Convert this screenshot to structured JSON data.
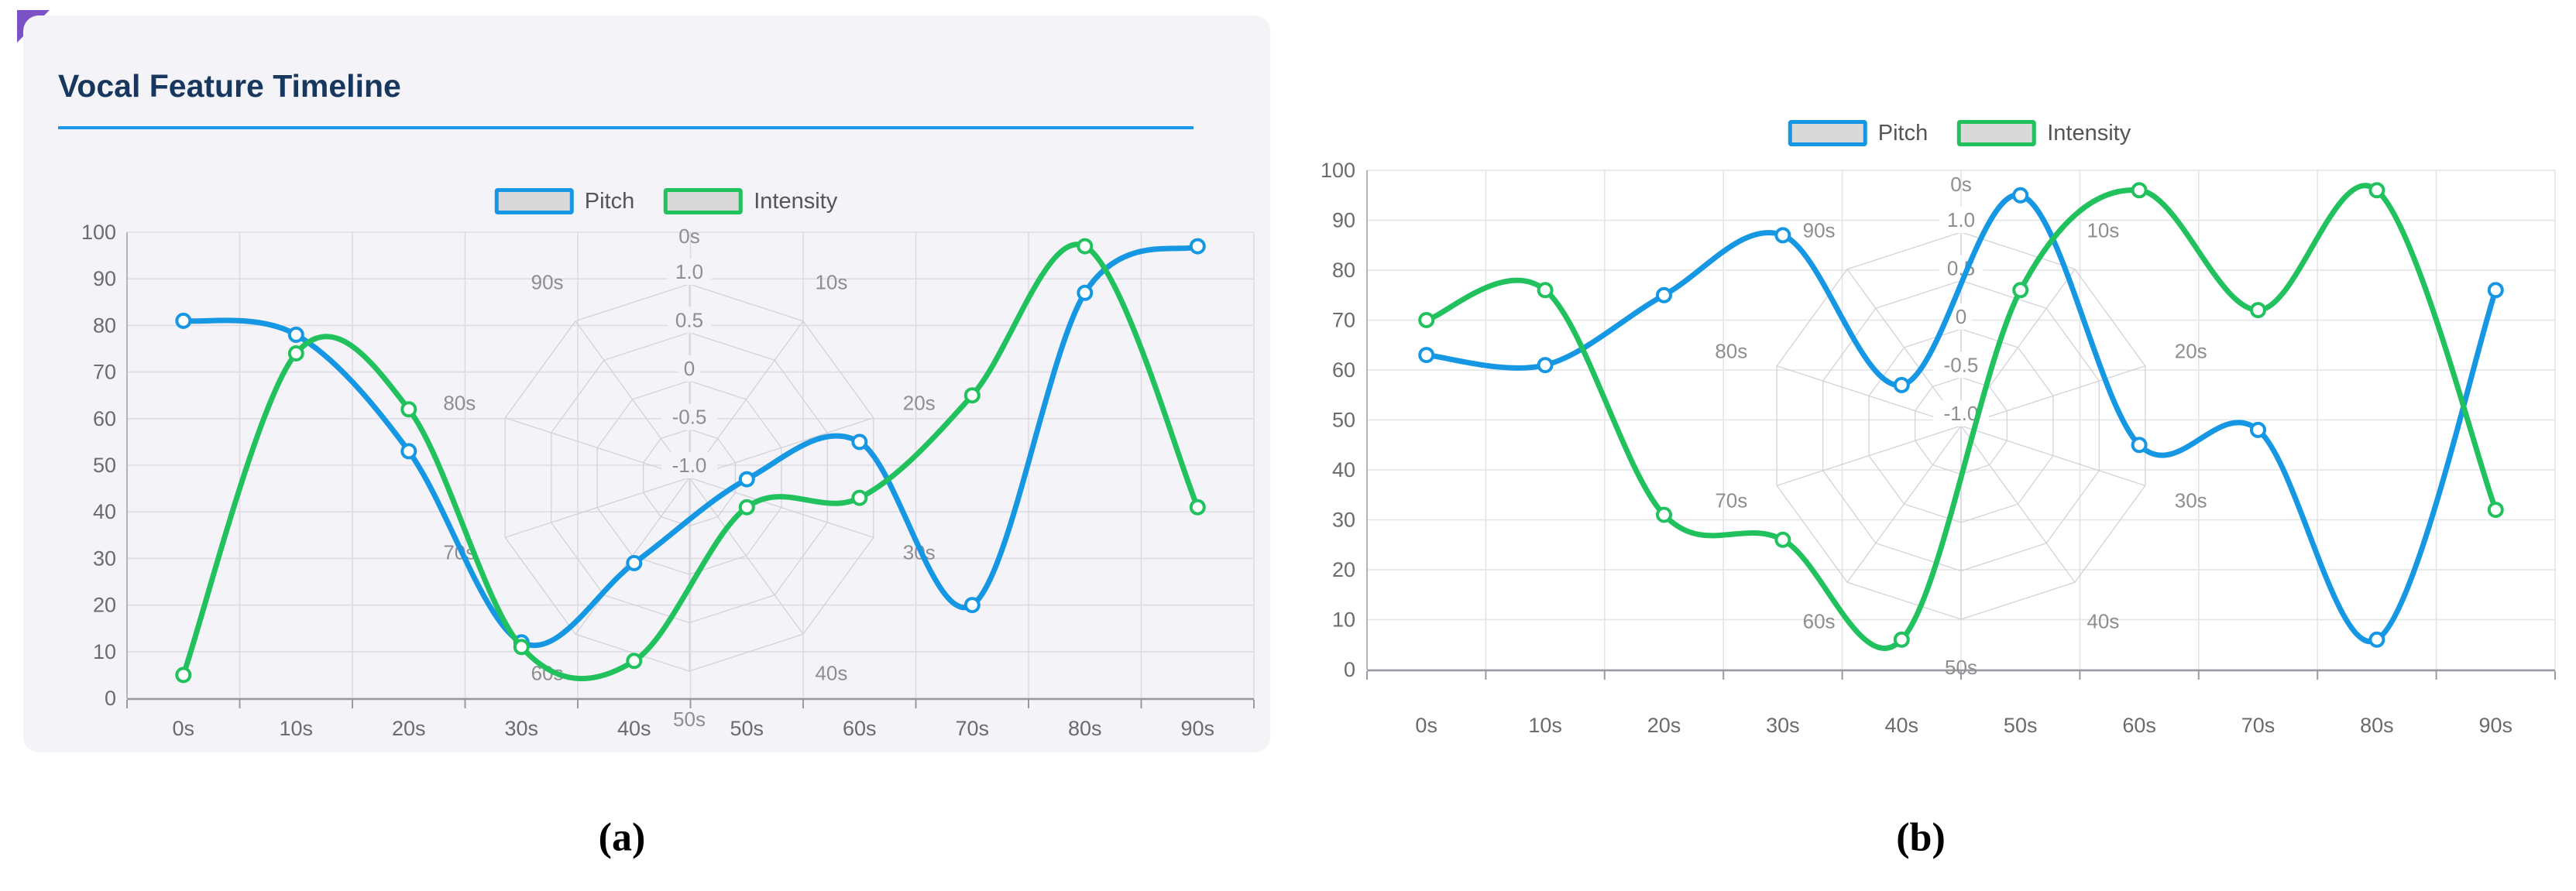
{
  "captions": {
    "a": "(a)",
    "b": "(b)"
  },
  "chart_data": [
    {
      "id": "a",
      "type": "line",
      "title": "Vocal Feature Timeline",
      "categories": [
        "0s",
        "10s",
        "20s",
        "30s",
        "40s",
        "50s",
        "60s",
        "70s",
        "80s",
        "90s"
      ],
      "series": [
        {
          "name": "Pitch",
          "color": "#1697e4",
          "values": [
            81,
            78,
            53,
            12,
            29,
            47,
            55,
            20,
            87,
            97
          ]
        },
        {
          "name": "Intensity",
          "color": "#21c25e",
          "values": [
            5,
            74,
            62,
            11,
            8,
            41,
            43,
            65,
            97,
            41
          ]
        }
      ],
      "ylim": [
        0,
        100
      ],
      "ytick_step": 10,
      "grid": true,
      "legend_position": "top",
      "radar_overlay": {
        "indicators": [
          "0s",
          "10s",
          "20s",
          "30s",
          "40s",
          "50s",
          "60s",
          "70s",
          "80s",
          "90s"
        ],
        "tick_labels": [
          "-1.0",
          "-0.5",
          "0",
          "0.5",
          "1.0"
        ],
        "range": [
          -1,
          1
        ]
      }
    },
    {
      "id": "b",
      "type": "line",
      "title": "",
      "categories": [
        "0s",
        "10s",
        "20s",
        "30s",
        "40s",
        "50s",
        "60s",
        "70s",
        "80s",
        "90s"
      ],
      "series": [
        {
          "name": "Pitch",
          "color": "#1697e4",
          "values": [
            63,
            61,
            75,
            87,
            57,
            95,
            45,
            48,
            6,
            76
          ]
        },
        {
          "name": "Intensity",
          "color": "#21c25e",
          "values": [
            70,
            76,
            31,
            26,
            6,
            76,
            96,
            72,
            96,
            32
          ]
        }
      ],
      "ylim": [
        0,
        100
      ],
      "ytick_step": 10,
      "grid": true,
      "legend_position": "top",
      "radar_overlay": {
        "indicators": [
          "0s",
          "10s",
          "20s",
          "30s",
          "40s",
          "50s",
          "60s",
          "70s",
          "80s",
          "90s"
        ],
        "tick_labels": [
          "-1.0",
          "-0.5",
          "0",
          "0.5",
          "1.0"
        ],
        "range": [
          -1,
          1
        ]
      }
    }
  ],
  "legend_swatch_fill": "#d9d9d9",
  "styles": {
    "card_background": "#f4f3f8",
    "accent_underline": "#1e96e5",
    "corner_triangle": "#7a52c5",
    "title_color": "#17375e"
  }
}
